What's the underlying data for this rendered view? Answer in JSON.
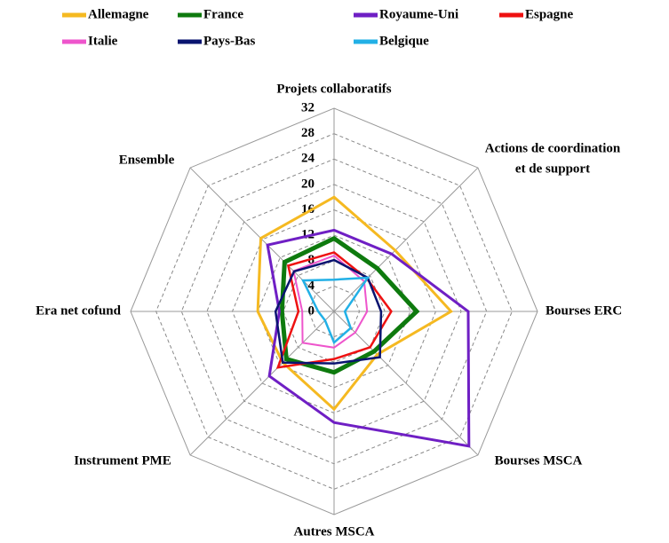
{
  "chart_data": {
    "type": "radar",
    "categories": [
      "Projets collaboratifs",
      [
        "Actions de coordination",
        "et de support"
      ],
      "Bourses ERC",
      "Bourses MSCA",
      "Autres MSCA",
      "Instrument PME",
      "Era net cofund",
      "Ensemble"
    ],
    "ylim": [
      0,
      32
    ],
    "yticks": [
      0,
      4,
      8,
      12,
      16,
      20,
      24,
      28,
      32
    ],
    "grid": true,
    "series": [
      {
        "name": "Allemagne",
        "color": "#f5b921",
        "width": 3,
        "values": [
          18,
          13.6,
          18.4,
          9.6,
          15.4,
          11.4,
          12,
          16.3
        ]
      },
      {
        "name": "France",
        "color": "#0e7a0e",
        "width": 5,
        "values": [
          11.5,
          9.6,
          13,
          8.9,
          9.6,
          10.6,
          8.2,
          11
        ]
      },
      {
        "name": "Royaume-Uni",
        "color": "#6f1fc4",
        "width": 3,
        "values": [
          12.8,
          12.8,
          21.1,
          30,
          17.5,
          14.4,
          8.6,
          14.8
        ]
      },
      {
        "name": "Espagne",
        "color": "#ee1111",
        "width": 2.5,
        "values": [
          9.3,
          7.3,
          9,
          8,
          7.5,
          12.5,
          5.6,
          10.2
        ]
      },
      {
        "name": "Italie",
        "color": "#ee55cc",
        "width": 2,
        "values": [
          8.8,
          6.7,
          5.2,
          4.7,
          5.7,
          7,
          5,
          9
        ]
      },
      {
        "name": "Pays-Bas",
        "color": "#0a1470",
        "width": 2.5,
        "values": [
          8.1,
          7.5,
          7.4,
          10.2,
          8.2,
          11.4,
          9.2,
          8.9
        ]
      },
      {
        "name": "Belgique",
        "color": "#22b0e6",
        "width": 2.5,
        "values": [
          5,
          7.5,
          1.7,
          3.7,
          4.9,
          2,
          2.5,
          6.9
        ]
      }
    ]
  }
}
